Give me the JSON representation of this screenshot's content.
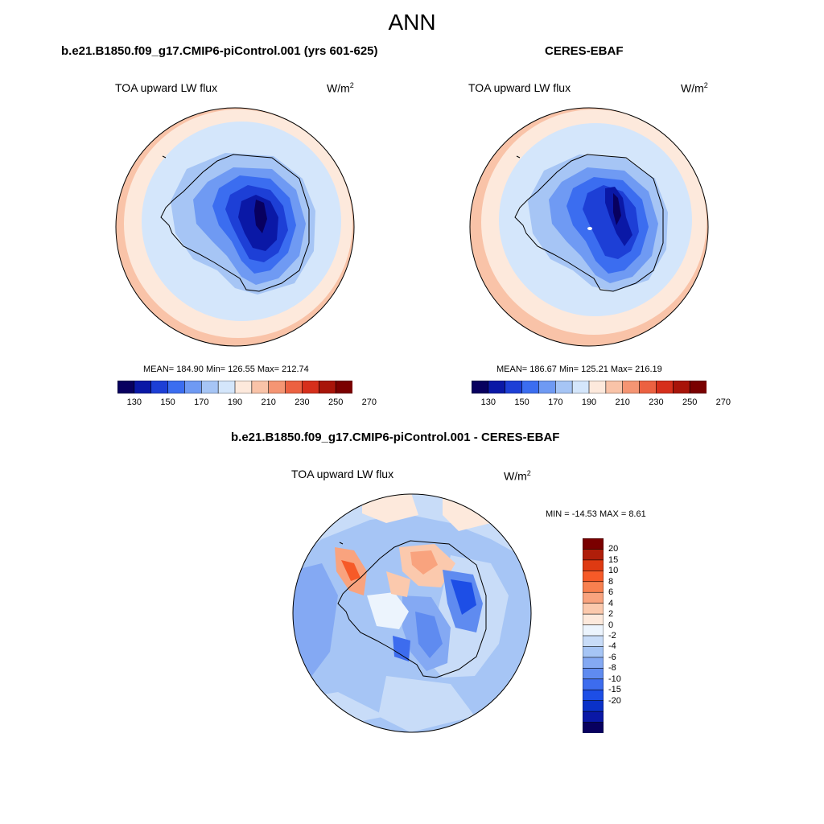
{
  "title": "ANN",
  "colors": {
    "abs_scale": [
      "#08005f",
      "#0a18a6",
      "#1d3fd6",
      "#3b6df0",
      "#6f9af3",
      "#a6c5f5",
      "#d4e6fb",
      "#fde9dc",
      "#f9c3a8",
      "#f59573",
      "#ec6141",
      "#d62f1b",
      "#a81409",
      "#7a0000"
    ],
    "diff_scale": [
      "#7a0000",
      "#b01e0a",
      "#de3a12",
      "#f65a28",
      "#f8804f",
      "#f9a37e",
      "#fbc9ad",
      "#fde9dc",
      "#ecf4fd",
      "#c8dcf8",
      "#a6c5f5",
      "#84a9f3",
      "#5f8bf0",
      "#3d6cee",
      "#1d4ee6",
      "#0a31c8",
      "#0a18a6",
      "#08005f"
    ]
  },
  "panels": {
    "model": {
      "title": "b.e21.B1850.f09_g17.CMIP6-piControl.001 (yrs 601-625)",
      "variable": "TOA upward LW flux",
      "units_base": "W/m",
      "units_exp": "2",
      "stats": "MEAN= 184.90  Min= 126.55  Max= 212.74",
      "colorbar_ticks": [
        "130",
        "150",
        "170",
        "190",
        "210",
        "230",
        "250",
        "270"
      ]
    },
    "obs": {
      "title": "CERES-EBAF",
      "variable": "TOA upward LW flux",
      "units_base": "W/m",
      "units_exp": "2",
      "stats": "MEAN= 186.67  Min= 125.21  Max= 216.19",
      "colorbar_ticks": [
        "130",
        "150",
        "170",
        "190",
        "210",
        "230",
        "250",
        "270"
      ]
    },
    "diff": {
      "title": "b.e21.B1850.f09_g17.CMIP6-piControl.001 - CERES-EBAF",
      "variable": "TOA upward LW flux",
      "units_base": "W/m",
      "units_exp": "2",
      "stats": "MIN = -14.53 MAX =   8.61",
      "colorbar_ticks": [
        "20",
        "15",
        "10",
        "8",
        "6",
        "4",
        "2",
        "0",
        "-2",
        "-4",
        "-6",
        "-8",
        "-10",
        "-15",
        "-20"
      ]
    }
  }
}
